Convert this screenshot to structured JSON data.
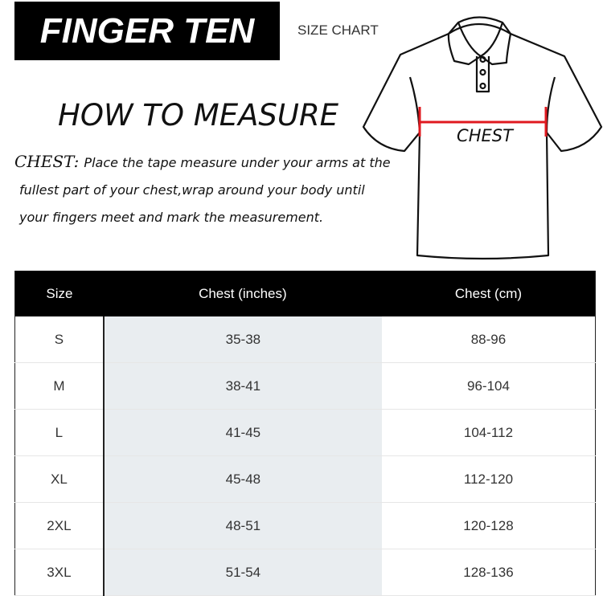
{
  "brand": "FINGER TEN",
  "size_chart_label": "SIZE CHART",
  "how_to_title": "HOW TO MEASURE",
  "chest_label": "CHEST:",
  "instructions": [
    "Place the tape measure under your arms at the",
    "fullest part of your chest,wrap around your body until",
    "your fingers meet and mark the measurement."
  ],
  "diagram": {
    "chest_label": "CHEST",
    "measure_color": "#e0191f"
  },
  "table": {
    "headers": [
      "Size",
      "Chest (inches)",
      "Chest (cm)"
    ],
    "rows": [
      [
        "S",
        "35-38",
        "88-96"
      ],
      [
        "M",
        "38-41",
        "96-104"
      ],
      [
        "L",
        "41-45",
        "104-112"
      ],
      [
        "XL",
        "45-48",
        "112-120"
      ],
      [
        "2XL",
        "48-51",
        "120-128"
      ],
      [
        "3XL",
        "51-54",
        "128-136"
      ]
    ]
  }
}
